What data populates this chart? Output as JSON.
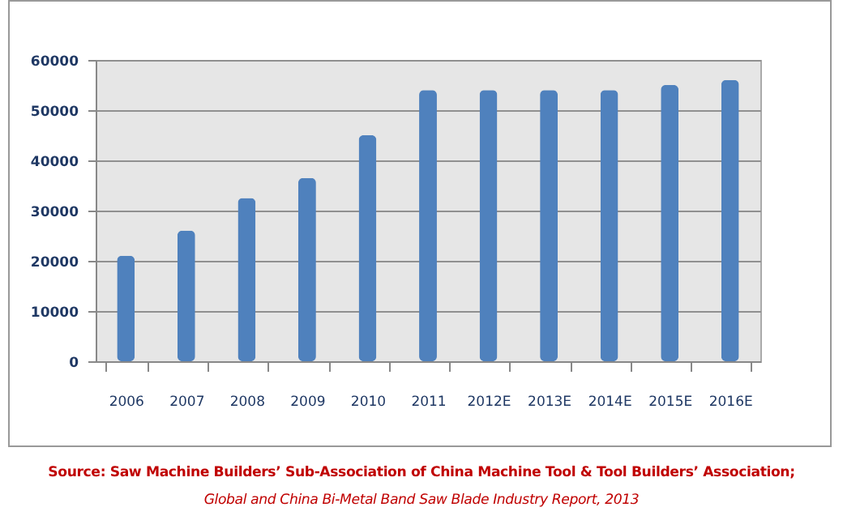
{
  "chart_data": {
    "type": "bar",
    "categories": [
      "2006",
      "2007",
      "2008",
      "2009",
      "2010",
      "2011",
      "2012E",
      "2013E",
      "2014E",
      "2015E",
      "2016E"
    ],
    "values": [
      21000,
      26000,
      32500,
      36500,
      45000,
      54000,
      54000,
      54000,
      54000,
      55000,
      56000
    ],
    "color": "#4f81bd",
    "ylim": [
      0,
      60000
    ],
    "yticks": [
      0,
      10000,
      20000,
      30000,
      40000,
      50000,
      60000
    ],
    "grid": true,
    "annotations": [
      "Source: Saw Machine Builders’ Sub-Association of China Machine Tool & Tool Builders’ Association;",
      "Global and China Bi-Metal Band Saw Blade Industry Report, 2013"
    ]
  }
}
